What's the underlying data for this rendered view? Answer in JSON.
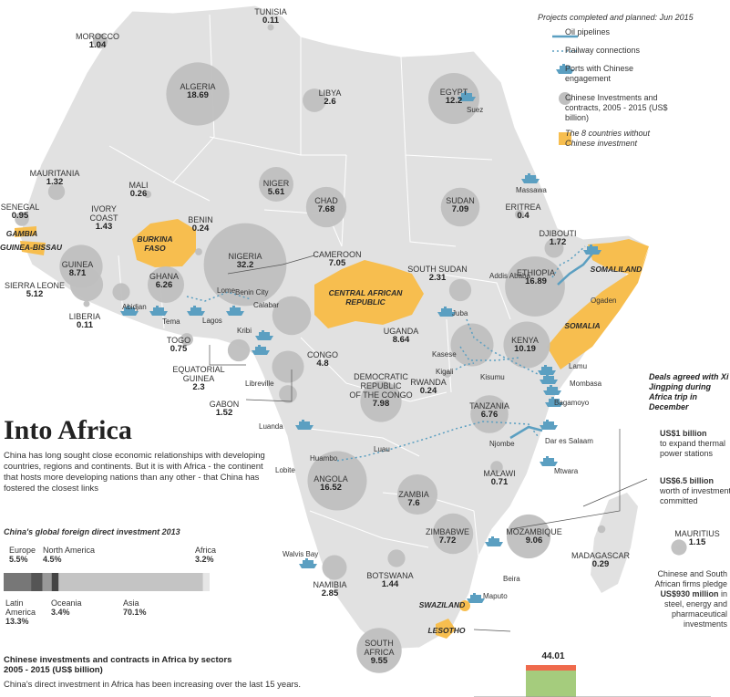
{
  "colors": {
    "land": "#e1e1e1",
    "circle": "#bfbfbf",
    "highlight": "#f7be4f",
    "route": "#5b9fc1",
    "ocean": "#ffffff",
    "bar_green": "#a5cc7d",
    "bar_red": "#ef6a4c"
  },
  "legend": {
    "title": "Projects completed and planned: Jun 2015",
    "items": [
      {
        "label": "Oil pipelines",
        "icon": "pipeline-icon"
      },
      {
        "label": "Railway connections",
        "icon": "railway-icon"
      },
      {
        "label": "Ports with Chinese engagement",
        "icon": "ship-icon"
      },
      {
        "label": "Chinese Investments and contracts, 2005 - 2015 (US$ billion)",
        "icon": "circle-icon"
      },
      {
        "label": "The 8 countries without Chinese investment",
        "icon": "swatch-icon"
      }
    ]
  },
  "countries": [
    {
      "name": "TUNISIA",
      "value": "0.11",
      "v": 0.11
    },
    {
      "name": "MOROCCO",
      "value": "1.04",
      "v": 1.04
    },
    {
      "name": "ALGERIA",
      "value": "18.69",
      "v": 18.69
    },
    {
      "name": "LIBYA",
      "value": "2.6",
      "v": 2.6
    },
    {
      "name": "EGYPT",
      "value": "12.2",
      "v": 12.2
    },
    {
      "name": "MAURITANIA",
      "value": "1.32",
      "v": 1.32
    },
    {
      "name": "MALI",
      "value": "0.26",
      "v": 0.26
    },
    {
      "name": "NIGER",
      "value": "5.61",
      "v": 5.61
    },
    {
      "name": "CHAD",
      "value": "7.68",
      "v": 7.68
    },
    {
      "name": "SUDAN",
      "value": "7.09",
      "v": 7.09
    },
    {
      "name": "ERITREA",
      "value": "0.4",
      "v": 0.4
    },
    {
      "name": "SENEGAL",
      "value": "0.95",
      "v": 0.95
    },
    {
      "name": "IVORY\nCOAST",
      "value": "1.43",
      "v": 1.43
    },
    {
      "name": "BENIN",
      "value": "0.24",
      "v": 0.24
    },
    {
      "name": "DJIBOUTI",
      "value": "1.72",
      "v": 1.72
    },
    {
      "name": "GUINEA",
      "value": "8.71",
      "v": 8.71
    },
    {
      "name": "GHANA",
      "value": "6.26",
      "v": 6.26
    },
    {
      "name": "NIGERIA",
      "value": "32.2",
      "v": 32.2
    },
    {
      "name": "CAMEROON",
      "value": "7.05",
      "v": 7.05
    },
    {
      "name": "SOUTH SUDAN",
      "value": "2.31",
      "v": 2.31
    },
    {
      "name": "ETHIOPIA",
      "value": "16.89",
      "v": 16.89
    },
    {
      "name": "SIERRA LEONE",
      "value": "5.12",
      "v": 5.12
    },
    {
      "name": "LIBERIA",
      "value": "0.11",
      "v": 0.11
    },
    {
      "name": "TOGO",
      "value": "0.75",
      "v": 0.75
    },
    {
      "name": "UGANDA",
      "value": "8.64",
      "v": 8.64
    },
    {
      "name": "KENYA",
      "value": "10.19",
      "v": 10.19
    },
    {
      "name": "EQUATORIAL\nGUINEA",
      "value": "2.3",
      "v": 2.3
    },
    {
      "name": "CONGO",
      "value": "4.8",
      "v": 4.8
    },
    {
      "name": "RWANDA",
      "value": "0.24",
      "v": 0.24
    },
    {
      "name": "GABON",
      "value": "1.52",
      "v": 1.52
    },
    {
      "name": "DEMOCRATIC\nREPUBLIC\nOF THE CONGO",
      "value": "7.98",
      "v": 7.98
    },
    {
      "name": "TANZANIA",
      "value": "6.76",
      "v": 6.76
    },
    {
      "name": "ANGOLA",
      "value": "16.52",
      "v": 16.52
    },
    {
      "name": "ZAMBIA",
      "value": "7.6",
      "v": 7.6
    },
    {
      "name": "MALAWI",
      "value": "0.71",
      "v": 0.71
    },
    {
      "name": "ZIMBABWE",
      "value": "7.72",
      "v": 7.72
    },
    {
      "name": "MOZAMBIQUE",
      "value": "9.06",
      "v": 9.06
    },
    {
      "name": "MADAGASCAR",
      "value": "0.29",
      "v": 0.29
    },
    {
      "name": "MAURITIUS",
      "value": "1.15",
      "v": 1.15
    },
    {
      "name": "NAMIBIA",
      "value": "2.85",
      "v": 2.85
    },
    {
      "name": "BOTSWANA",
      "value": "1.44",
      "v": 1.44
    },
    {
      "name": "SOUTH\nAFRICA",
      "value": "9.55",
      "v": 9.55
    }
  ],
  "no_investment": [
    "GAMBIA",
    "GUINEA-BISSAU",
    "BURKINA\nFASO",
    "CENTRAL AFRICAN\nREPUBLIC",
    "SOMALILAND",
    "SOMALIA",
    "SWAZILAND",
    "LESOTHO"
  ],
  "cities": [
    "Suez",
    "Massawa",
    "Addis Ababa",
    "Ogaden",
    "Lome",
    "Benin City",
    "Calabar",
    "Abidjan",
    "Tema",
    "Lagos",
    "Kribi",
    "Libreville",
    "Juba",
    "Kasese",
    "Kisumu",
    "Lamu",
    "Mombasa",
    "Kigali",
    "Bagamoyo",
    "Luanda",
    "Dar es Salaam",
    "Njombe",
    "Mtwara",
    "Luau",
    "Huambo",
    "Lobite",
    "Walvis Bay",
    "Beira",
    "Maputo"
  ],
  "article": {
    "title": "Into Africa",
    "intro": "China has long sought close economic relationships with developing countries, regions and continents. But it is with Africa - the continent that hosts more developing nations than any other - that China has fostered the closest links"
  },
  "fdi": {
    "title": "China's global foreign direct investment 2013",
    "segments": [
      {
        "name": "Latin\nAmerica",
        "value": "13.3%",
        "v": 13.3,
        "color": "#777777"
      },
      {
        "name": "Europe",
        "value": "5.5%",
        "v": 5.5,
        "color": "#555555"
      },
      {
        "name": "North America",
        "value": "4.5%",
        "v": 4.5,
        "color": "#999999"
      },
      {
        "name": "Oceania",
        "value": "3.4%",
        "v": 3.4,
        "color": "#444444"
      },
      {
        "name": "Asia",
        "value": "70.1%",
        "v": 70.1,
        "color": "#c4c4c4"
      },
      {
        "name": "Africa",
        "value": "3.2%",
        "v": 3.2,
        "color": "#e6e6e6"
      }
    ]
  },
  "sectors": {
    "title": "Chinese investments and contracts in Africa by sectors\n2005 - 2015 (US$ billion)",
    "text": "China's direct investment in Africa has been increasing over the last 15 years.",
    "bar_value": "44.01"
  },
  "deals": {
    "title": "Deals agreed with Xi Jingping during Africa trip in December",
    "items": [
      {
        "amount": "US$1 billion",
        "text": "to expand thermal power stations"
      },
      {
        "amount": "US$6.5 billion",
        "text": "worth of investments committed"
      },
      {
        "amount": "US$930 million",
        "text_before": "Chinese and South African firms pledge",
        "text": "in steel, energy and pharmaceutical investments"
      }
    ]
  }
}
